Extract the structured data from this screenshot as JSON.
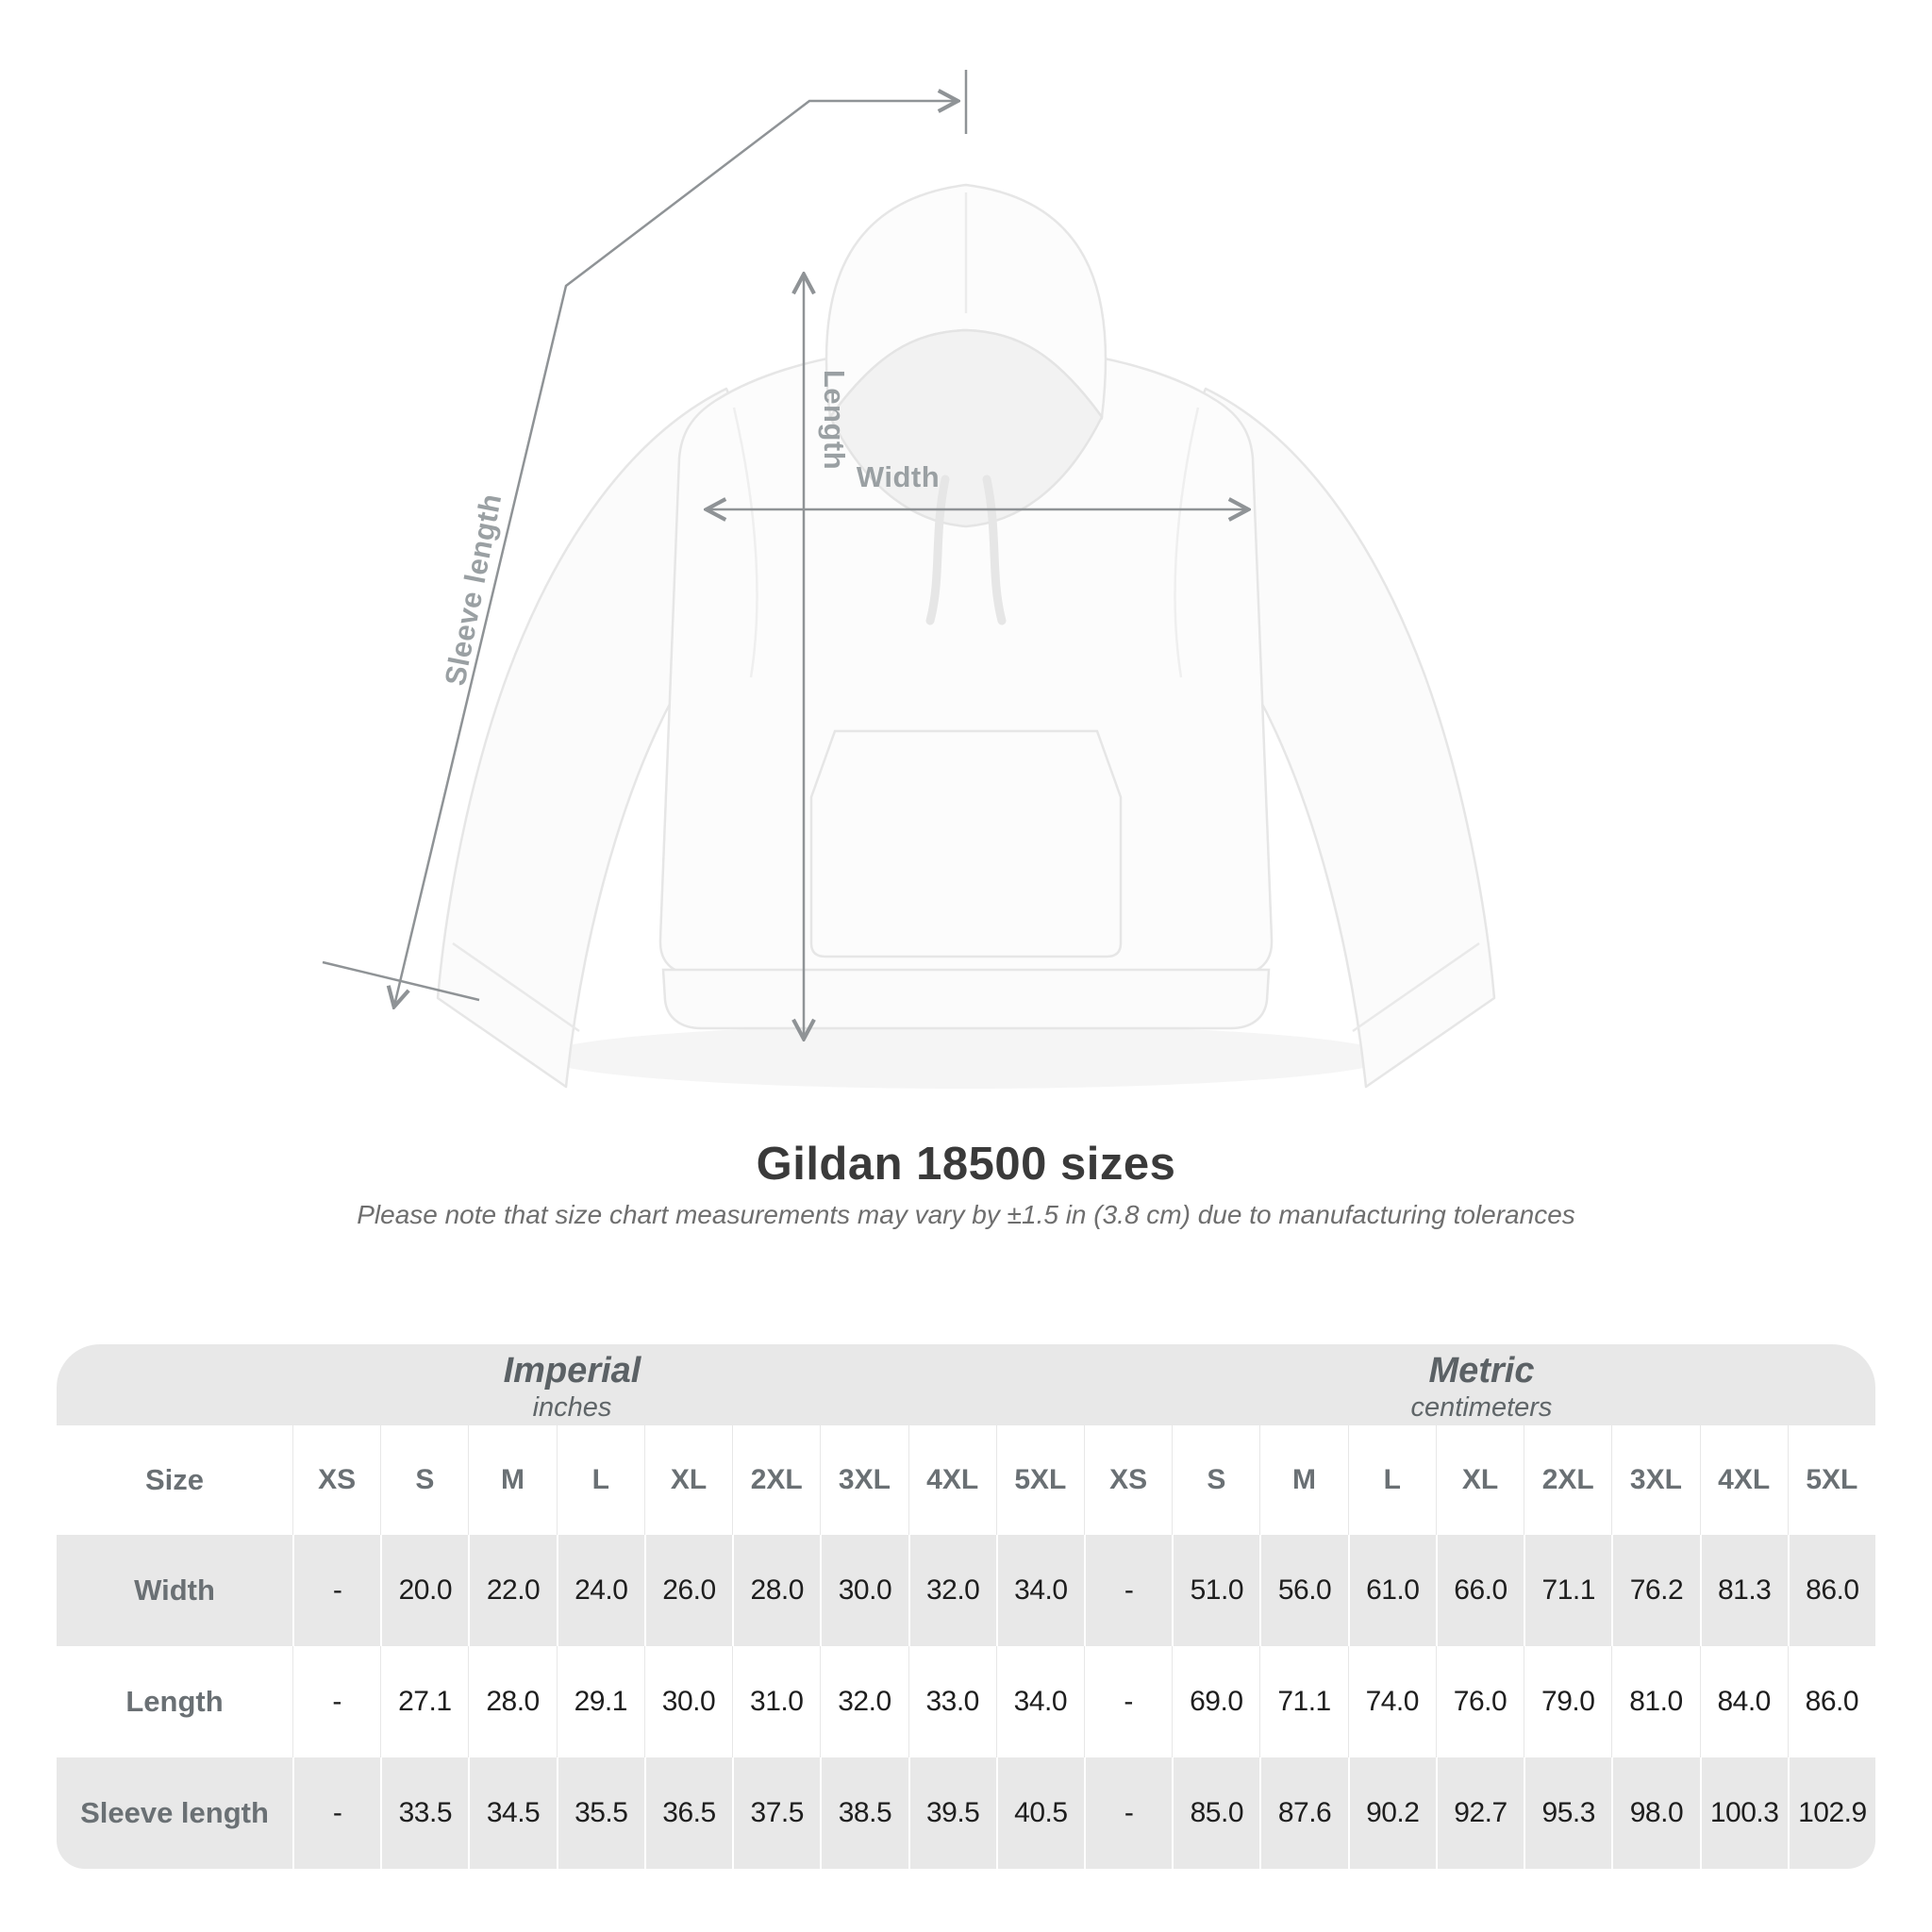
{
  "diagram": {
    "labels": {
      "sleeve_length": "Sleeve length",
      "length": "Length",
      "width": "Width"
    }
  },
  "title": "Gildan 18500 sizes",
  "subtitle": "Please note that size chart measurements may vary by ±1.5 in (3.8 cm) due to manufacturing tolerances",
  "table": {
    "unit_headers": [
      {
        "label": "Imperial",
        "sub": "inches"
      },
      {
        "label": "Metric",
        "sub": "centimeters"
      }
    ],
    "size_header_label": "Size",
    "sizes": [
      "XS",
      "S",
      "M",
      "L",
      "XL",
      "2XL",
      "3XL",
      "4XL",
      "5XL"
    ],
    "rows": [
      {
        "label": "Width",
        "imperial": [
          "-",
          "20.0",
          "22.0",
          "24.0",
          "26.0",
          "28.0",
          "30.0",
          "32.0",
          "34.0"
        ],
        "metric": [
          "-",
          "51.0",
          "56.0",
          "61.0",
          "66.0",
          "71.1",
          "76.2",
          "81.3",
          "86.0"
        ]
      },
      {
        "label": "Length",
        "imperial": [
          "-",
          "27.1",
          "28.0",
          "29.1",
          "30.0",
          "31.0",
          "32.0",
          "33.0",
          "34.0"
        ],
        "metric": [
          "-",
          "69.0",
          "71.1",
          "74.0",
          "76.0",
          "79.0",
          "81.0",
          "84.0",
          "86.0"
        ]
      },
      {
        "label": "Sleeve length",
        "imperial": [
          "-",
          "33.5",
          "34.5",
          "35.5",
          "36.5",
          "37.5",
          "38.5",
          "39.5",
          "40.5"
        ],
        "metric": [
          "-",
          "85.0",
          "87.6",
          "90.2",
          "92.7",
          "95.3",
          "98.0",
          "100.3",
          "102.9"
        ]
      }
    ]
  },
  "chart_data": {
    "type": "table",
    "title": "Gildan 18500 sizes",
    "note": "Please note that size chart measurements may vary by ±1.5 in (3.8 cm) due to manufacturing tolerances",
    "columns": [
      "XS",
      "S",
      "M",
      "L",
      "XL",
      "2XL",
      "3XL",
      "4XL",
      "5XL"
    ],
    "sections": [
      {
        "name": "Imperial",
        "unit": "inches",
        "rows": [
          {
            "label": "Width",
            "values": [
              null,
              20.0,
              22.0,
              24.0,
              26.0,
              28.0,
              30.0,
              32.0,
              34.0
            ]
          },
          {
            "label": "Length",
            "values": [
              null,
              27.1,
              28.0,
              29.1,
              30.0,
              31.0,
              32.0,
              33.0,
              34.0
            ]
          },
          {
            "label": "Sleeve length",
            "values": [
              null,
              33.5,
              34.5,
              35.5,
              36.5,
              37.5,
              38.5,
              39.5,
              40.5
            ]
          }
        ]
      },
      {
        "name": "Metric",
        "unit": "centimeters",
        "rows": [
          {
            "label": "Width",
            "values": [
              null,
              51.0,
              56.0,
              61.0,
              66.0,
              71.1,
              76.2,
              81.3,
              86.0
            ]
          },
          {
            "label": "Length",
            "values": [
              null,
              69.0,
              71.1,
              74.0,
              76.0,
              79.0,
              81.0,
              84.0,
              86.0
            ]
          },
          {
            "label": "Sleeve length",
            "values": [
              null,
              85.0,
              87.6,
              90.2,
              92.7,
              95.3,
              98.0,
              100.3,
              102.9
            ]
          }
        ]
      }
    ]
  }
}
